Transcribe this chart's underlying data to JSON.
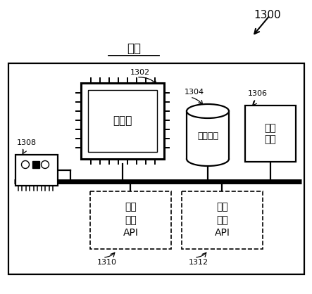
{
  "title": "装置",
  "fig_number": "1300",
  "background": "#ffffff",
  "labels": {
    "processor": "处理器",
    "storage": "存储装置",
    "security": "安全\n模块",
    "provision_api": "装置\n配备\nAPI",
    "manage_api": "装置\n管理\nAPI"
  },
  "ref_numbers": {
    "fig": "1300",
    "processor": "1302",
    "storage": "1304",
    "security": "1306",
    "nic": "1308",
    "provision": "1310",
    "manage": "1312"
  }
}
